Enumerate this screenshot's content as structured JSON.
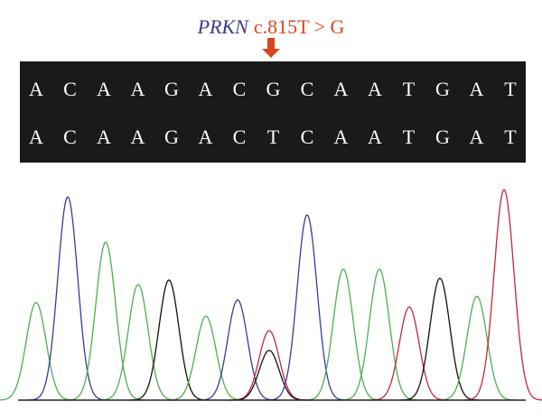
{
  "title": {
    "gene": "PRKN",
    "variant": "c.815T > G"
  },
  "sequence": {
    "reference": [
      "A",
      "C",
      "A",
      "A",
      "G",
      "A",
      "C",
      "G",
      "C",
      "A",
      "A",
      "T",
      "G",
      "A",
      "T"
    ],
    "sample": [
      "A",
      "C",
      "A",
      "A",
      "G",
      "A",
      "C",
      "T",
      "C",
      "A",
      "A",
      "T",
      "G",
      "A",
      "T"
    ]
  }
}
